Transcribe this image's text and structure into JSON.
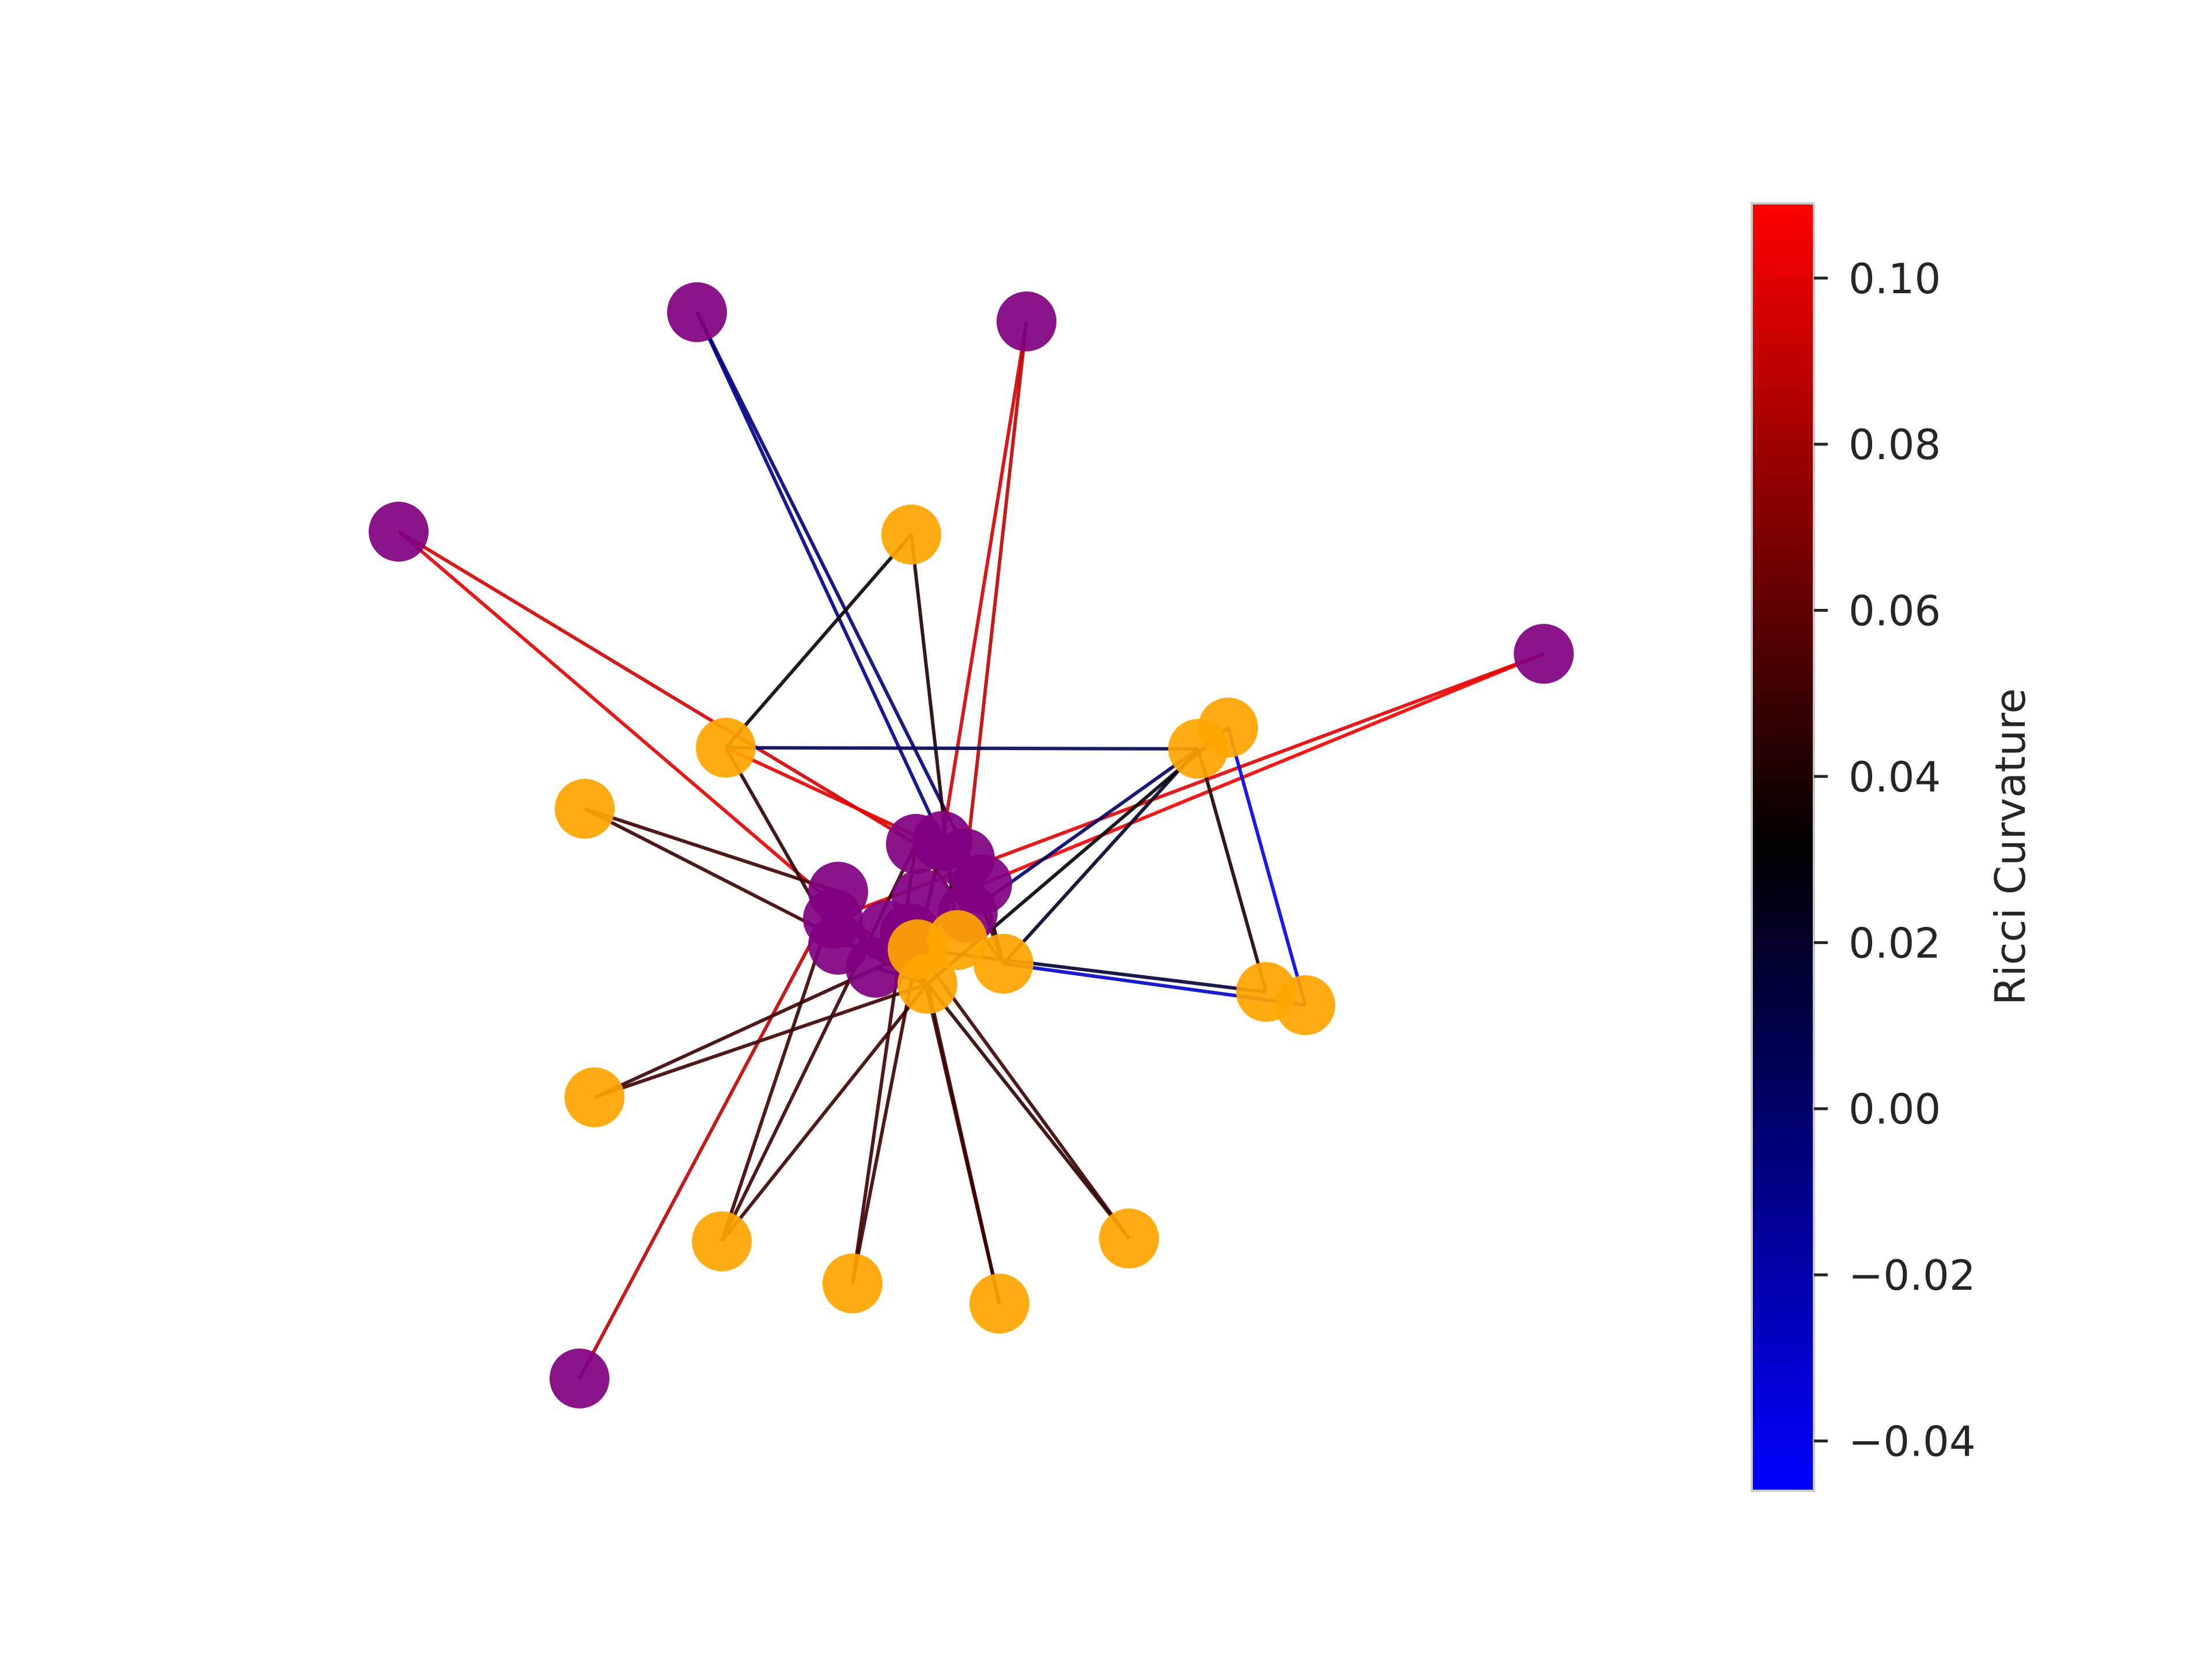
{
  "chart_data": {
    "type": "network",
    "node_colors": {
      "group_a": "#800080",
      "group_b": "#FFA500"
    },
    "colorbar": {
      "label": "Ricci Curvature",
      "vmin": -0.046,
      "vmax": 0.109,
      "colormap": [
        "#0000FF",
        "#000000",
        "#FF0000"
      ],
      "ticks": [
        {
          "value": 0.1,
          "label": "0.10"
        },
        {
          "value": 0.08,
          "label": "0.08"
        },
        {
          "value": 0.06,
          "label": "0.06"
        },
        {
          "value": 0.04,
          "label": "0.04"
        },
        {
          "value": 0.02,
          "label": "0.02"
        },
        {
          "value": 0.0,
          "label": "0.00"
        },
        {
          "value": -0.02,
          "label": "−0.02"
        },
        {
          "value": -0.04,
          "label": "−0.04"
        }
      ]
    },
    "nodes": [
      {
        "id": "n1",
        "group": "group_a"
      },
      {
        "id": "n2",
        "group": "group_a"
      },
      {
        "id": "n3",
        "group": "group_a"
      },
      {
        "id": "n4",
        "group": "group_a"
      },
      {
        "id": "n5",
        "group": "group_a"
      },
      {
        "id": "n6",
        "group": "group_b"
      },
      {
        "id": "n7",
        "group": "group_b"
      },
      {
        "id": "n8",
        "group": "group_b"
      },
      {
        "id": "n9",
        "group": "group_b"
      },
      {
        "id": "n10",
        "group": "group_b"
      },
      {
        "id": "n11",
        "group": "group_b"
      },
      {
        "id": "n12",
        "group": "group_b"
      },
      {
        "id": "n13",
        "group": "group_b"
      },
      {
        "id": "n14",
        "group": "group_b"
      },
      {
        "id": "n15",
        "group": "group_b"
      },
      {
        "id": "n16",
        "group": "group_b"
      },
      {
        "id": "n17",
        "group": "group_b"
      },
      {
        "id": "n18",
        "group": "group_a"
      },
      {
        "id": "n19",
        "group": "group_a"
      },
      {
        "id": "n20",
        "group": "group_a"
      },
      {
        "id": "n21",
        "group": "group_a"
      },
      {
        "id": "n22",
        "group": "group_a"
      },
      {
        "id": "n23",
        "group": "group_a"
      },
      {
        "id": "n24",
        "group": "group_a"
      },
      {
        "id": "n25",
        "group": "group_a"
      },
      {
        "id": "n26",
        "group": "group_a"
      },
      {
        "id": "n27",
        "group": "group_a"
      },
      {
        "id": "n28",
        "group": "group_a"
      },
      {
        "id": "n29",
        "group": "group_a"
      },
      {
        "id": "n30",
        "group": "group_b"
      },
      {
        "id": "n31",
        "group": "group_b"
      },
      {
        "id": "n32",
        "group": "group_b"
      },
      {
        "id": "n33",
        "group": "group_b"
      }
    ],
    "edges": [
      {
        "source": "n1",
        "target": "n20",
        "curvature": -0.01
      },
      {
        "source": "n1",
        "target": "n22",
        "curvature": -0.005
      },
      {
        "source": "n2",
        "target": "n20",
        "curvature": 0.095
      },
      {
        "source": "n2",
        "target": "n33",
        "curvature": 0.09
      },
      {
        "source": "n3",
        "target": "n31",
        "curvature": 0.1
      },
      {
        "source": "n3",
        "target": "n19",
        "curvature": 0.095
      },
      {
        "source": "n4",
        "target": "n22",
        "curvature": 0.105
      },
      {
        "source": "n4",
        "target": "n23",
        "curvature": 0.1
      },
      {
        "source": "n5",
        "target": "n18",
        "curvature": 0.09
      },
      {
        "source": "n6",
        "target": "n7",
        "curvature": 0.035
      },
      {
        "source": "n6",
        "target": "n33",
        "curvature": 0.04
      },
      {
        "source": "n7",
        "target": "n11",
        "curvature": 0.005
      },
      {
        "source": "n7",
        "target": "n24",
        "curvature": 0.045
      },
      {
        "source": "n7",
        "target": "n21",
        "curvature": 0.1
      },
      {
        "source": "n8",
        "target": "n31",
        "curvature": 0.05
      },
      {
        "source": "n8",
        "target": "n18",
        "curvature": 0.05
      },
      {
        "source": "n9",
        "target": "n32",
        "curvature": 0.05
      },
      {
        "source": "n9",
        "target": "n31",
        "curvature": 0.05
      },
      {
        "source": "n10",
        "target": "n31",
        "curvature": 0.05
      },
      {
        "source": "n10",
        "target": "n18",
        "curvature": 0.05
      },
      {
        "source": "n10",
        "target": "n19",
        "curvature": 0.05
      },
      {
        "source": "n11",
        "target": "n13",
        "curvature": 0.04
      },
      {
        "source": "n11",
        "target": "n30",
        "curvature": 0.02
      },
      {
        "source": "n11",
        "target": "n25",
        "curvature": 0.0
      },
      {
        "source": "n12",
        "target": "n14",
        "curvature": -0.04
      },
      {
        "source": "n12",
        "target": "n31",
        "curvature": 0.03
      },
      {
        "source": "n13",
        "target": "n32",
        "curvature": 0.015
      },
      {
        "source": "n14",
        "target": "n30",
        "curvature": -0.03
      },
      {
        "source": "n15",
        "target": "n32",
        "curvature": 0.05
      },
      {
        "source": "n15",
        "target": "n19",
        "curvature": 0.05
      },
      {
        "source": "n16",
        "target": "n31",
        "curvature": 0.05
      },
      {
        "source": "n16",
        "target": "n32",
        "curvature": 0.05
      },
      {
        "source": "n17",
        "target": "n32",
        "curvature": 0.05
      },
      {
        "source": "n17",
        "target": "n31",
        "curvature": 0.045
      },
      {
        "source": "n20",
        "target": "n32",
        "curvature": 0.05
      },
      {
        "source": "n22",
        "target": "n30",
        "curvature": 0.04
      },
      {
        "source": "n23",
        "target": "n31",
        "curvature": 0.03
      },
      {
        "source": "n19",
        "target": "n30",
        "curvature": 0.06
      },
      {
        "source": "n21",
        "target": "n30",
        "curvature": 0.05
      },
      {
        "source": "n27",
        "target": "n32",
        "curvature": 0.05
      },
      {
        "source": "n28",
        "target": "n31",
        "curvature": 0.05
      },
      {
        "source": "n24",
        "target": "n32",
        "curvature": 0.05
      }
    ]
  }
}
